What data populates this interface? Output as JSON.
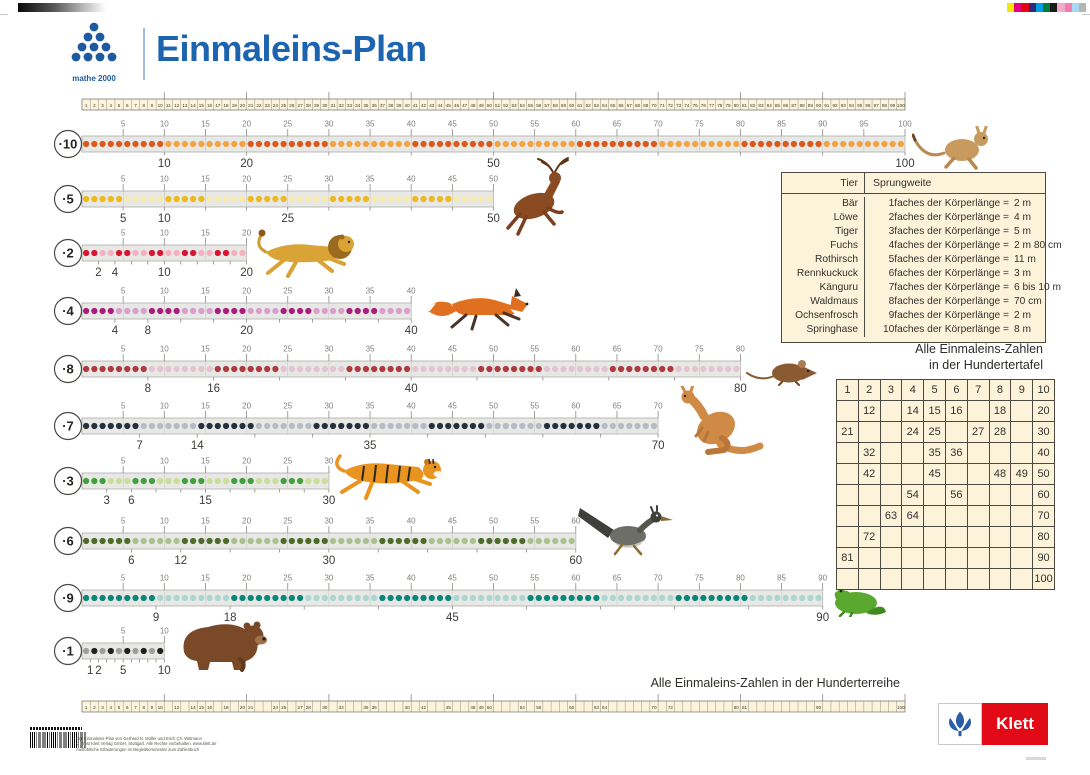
{
  "print_marks": {
    "colors": [
      "#f6e700",
      "#e5007d",
      "#e30613",
      "#2d2a7e",
      "#009ee0",
      "#007a3d",
      "#1a1a18",
      "#f4a9c7",
      "#ef7fae",
      "#a8d9f2",
      "#b5b5b3"
    ]
  },
  "header": {
    "logo_text": "mathe 2000",
    "title": "Einmaleins-Plan",
    "title_color": "#1c64b0"
  },
  "top_number_row": {
    "from": 1,
    "to": 100
  },
  "rows": [
    {
      "factor": 10,
      "label": "·10",
      "dark": "#dc591c",
      "light": "#f2a441",
      "bottom_labels": [
        10,
        20,
        50,
        100
      ],
      "animal": "Springhase"
    },
    {
      "factor": 5,
      "label": "·5",
      "dark": "#edb91c",
      "light": "#f8e9b0",
      "bottom_labels": [
        5,
        10,
        25,
        50
      ],
      "animal": "Rothirsch"
    },
    {
      "factor": 2,
      "label": "·2",
      "dark": "#d91432",
      "light": "#f4b1c0",
      "bottom_labels": [
        2,
        4,
        10,
        20
      ],
      "animal": "Löwe"
    },
    {
      "factor": 4,
      "label": "·4",
      "dark": "#aa1d7d",
      "light": "#d89fcb",
      "bottom_labels": [
        4,
        8,
        20,
        40
      ],
      "animal": "Fuchs"
    },
    {
      "factor": 8,
      "label": "·8",
      "dark": "#ad3a3e",
      "light": "#e5c2cf",
      "bottom_labels": [
        8,
        16,
        40,
        80
      ],
      "animal": "Waldmaus"
    },
    {
      "factor": 7,
      "label": "·7",
      "dark": "#252f3e",
      "light": "#b6bbc4",
      "bottom_labels": [
        7,
        14,
        35,
        70
      ],
      "animal": "Känguru"
    },
    {
      "factor": 3,
      "label": "·3",
      "dark": "#41a03b",
      "light": "#cadd99",
      "bottom_labels": [
        3,
        6,
        15,
        30
      ],
      "animal": "Tiger"
    },
    {
      "factor": 6,
      "label": "·6",
      "dark": "#4d6c27",
      "light": "#abc08f",
      "bottom_labels": [
        6,
        12,
        30,
        60
      ],
      "animal": "Rennkuckuck"
    },
    {
      "factor": 9,
      "label": "·9",
      "dark": "#0a8678",
      "light": "#abd7d0",
      "bottom_labels": [
        9,
        18,
        45,
        90
      ],
      "animal": "Ochsenfrosch"
    },
    {
      "factor": 1,
      "label": "·1",
      "dark": "#20201e",
      "light": "#9e9e9c",
      "start_light": true,
      "bottom_labels": [
        1,
        2,
        5,
        10
      ],
      "animal": "Bär"
    }
  ],
  "sprungweite": {
    "header": [
      "Tier",
      "Sprungweite"
    ],
    "rows": [
      {
        "tier": "Bär",
        "mult": "1faches der Körperlänge =",
        "weite": "2 m"
      },
      {
        "tier": "Löwe",
        "mult": "2faches der Körperlänge =",
        "weite": "4 m"
      },
      {
        "tier": "Tiger",
        "mult": "3faches der Körperlänge =",
        "weite": "5 m"
      },
      {
        "tier": "Fuchs",
        "mult": "4faches der Körperlänge =",
        "weite": "2 m 80 cm"
      },
      {
        "tier": "Rothirsch",
        "mult": "5faches der Körperlänge =",
        "weite": "11 m"
      },
      {
        "tier": "Rennkuckuck",
        "mult": "6faches der Körperlänge =",
        "weite": "3 m"
      },
      {
        "tier": "Känguru",
        "mult": "7faches der Körperlänge =",
        "weite": "6 bis 10 m"
      },
      {
        "tier": "Waldmaus",
        "mult": "8faches der Körperlänge =",
        "weite": "70 cm"
      },
      {
        "tier": "Ochsenfrosch",
        "mult": "9faches der Körperlänge =",
        "weite": "2 m"
      },
      {
        "tier": "Springhase",
        "mult": "10faches der Körperlänge =",
        "weite": "8 m"
      }
    ]
  },
  "hundertertafel": {
    "title_line1": "Alle Einmaleins-Zahlen",
    "title_line2": "in der Hundertertafel",
    "grid": [
      [
        "1",
        "2",
        "3",
        "4",
        "5",
        "6",
        "7",
        "8",
        "9",
        "10"
      ],
      [
        "",
        "12",
        "",
        "14",
        "15",
        "16",
        "",
        "18",
        "",
        "20"
      ],
      [
        "21",
        "",
        "",
        "24",
        "25",
        "",
        "27",
        "28",
        "",
        "30"
      ],
      [
        "",
        "32",
        "",
        "",
        "35",
        "36",
        "",
        "",
        "",
        "40"
      ],
      [
        "",
        "42",
        "",
        "",
        "45",
        "",
        "",
        "48",
        "49",
        "50"
      ],
      [
        "",
        "",
        "",
        "54",
        "",
        "56",
        "",
        "",
        "",
        "60"
      ],
      [
        "",
        "",
        "63",
        "64",
        "",
        "",
        "",
        "",
        "",
        "70"
      ],
      [
        "",
        "72",
        "",
        "",
        "",
        "",
        "",
        "",
        "",
        "80"
      ],
      [
        "81",
        "",
        "",
        "",
        "",
        "",
        "",
        "",
        "",
        "90"
      ],
      [
        "",
        "",
        "",
        "",
        "",
        "",
        "",
        "",
        "",
        "100"
      ]
    ]
  },
  "hunderterreihe": {
    "title": "Alle Einmaleins-Zahlen in der Hunderterreihe",
    "numbers": [
      1,
      2,
      3,
      4,
      5,
      6,
      7,
      8,
      9,
      10,
      12,
      14,
      15,
      16,
      18,
      20,
      21,
      24,
      25,
      27,
      28,
      30,
      32,
      35,
      36,
      40,
      42,
      45,
      48,
      49,
      50,
      54,
      56,
      60,
      63,
      64,
      70,
      72,
      80,
      81,
      90,
      100
    ]
  },
  "footer": {
    "imprint_lines": [
      "Der Einmaleins-Plan von Gerhard N. Müller und Erich Ch. Wittmann",
      "© Ernst Klett Verlag GmbH, Stuttgart. Alle Rechte vorbehalten. www.klett.de",
      "Ausführliche Erläuterungen im Begleitkommentar zum Zahlenbuch"
    ],
    "klett_label": "Klett"
  }
}
